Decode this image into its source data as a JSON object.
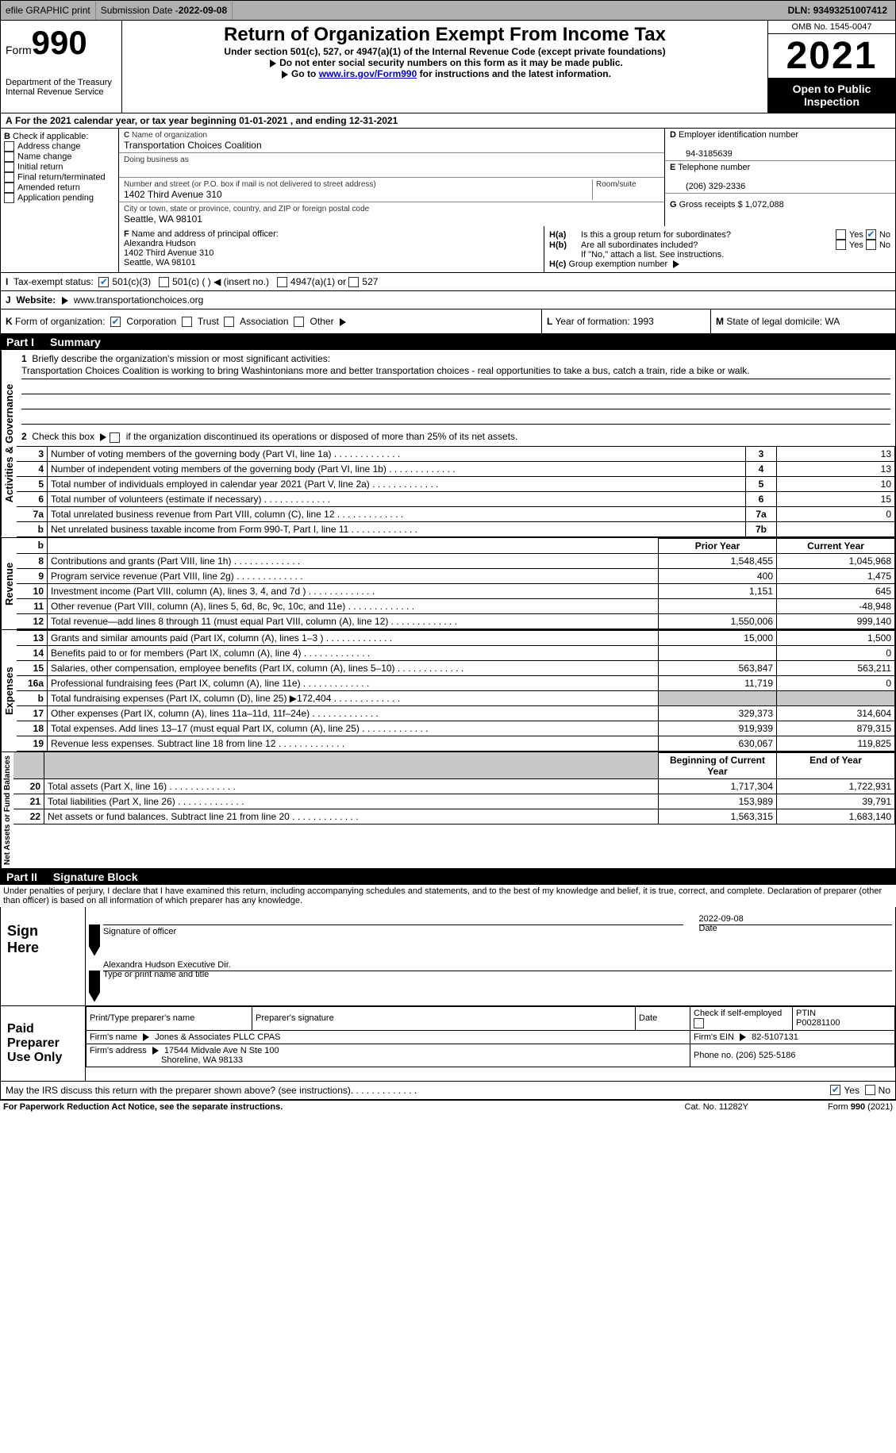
{
  "topbar": {
    "efile": "efile GRAPHIC print",
    "submission_label": "Submission Date - ",
    "submission_date": "2022-09-08",
    "dln_label": "DLN: ",
    "dln": "93493251007412"
  },
  "header": {
    "form_word": "Form",
    "form_num": "990",
    "dept": "Department of the Treasury",
    "irs": "Internal Revenue Service",
    "title": "Return of Organization Exempt From Income Tax",
    "subtitle": "Under section 501(c), 527, or 4947(a)(1) of the Internal Revenue Code (except private foundations)",
    "warn": "Do not enter social security numbers on this form as it may be made public.",
    "goto_pre": "Go to ",
    "goto_link": "www.irs.gov/Form990",
    "goto_post": " for instructions and the latest information.",
    "omb": "OMB No. 1545-0047",
    "year": "2021",
    "public1": "Open to Public",
    "public2": "Inspection"
  },
  "sectionA": {
    "text_pre": "For the 2021 calendar year, or tax year beginning ",
    "begin": "01-01-2021",
    "mid": " , and ending ",
    "end": "12-31-2021"
  },
  "B": {
    "header": "Check if applicable:",
    "items": [
      "Address change",
      "Name change",
      "Initial return",
      "Final return/terminated",
      "Amended return",
      "Application pending"
    ]
  },
  "C": {
    "name_label": "Name of organization",
    "name": "Transportation Choices Coalition",
    "dba_label": "Doing business as",
    "dba": "",
    "addr_label": "Number and street (or P.O. box if mail is not delivered to street address)",
    "room_label": "Room/suite",
    "addr": "1402 Third Avenue 310",
    "city_label": "City or town, state or province, country, and ZIP or foreign postal code",
    "city": "Seattle, WA  98101"
  },
  "D": {
    "label": "Employer identification number",
    "value": "94-3185639"
  },
  "E": {
    "label": "Telephone number",
    "value": "(206) 329-2336"
  },
  "G": {
    "label": "Gross receipts $ ",
    "value": "1,072,088"
  },
  "F": {
    "label": "Name and address of principal officer:",
    "name": "Alexandra Hudson",
    "addr1": "1402 Third Avenue 310",
    "addr2": "Seattle, WA  98101"
  },
  "H": {
    "a": "Is this a group return for subordinates?",
    "b": "Are all subordinates included?",
    "b_note": "If \"No,\" attach a list. See instructions.",
    "c": "Group exemption number",
    "yes": "Yes",
    "no": "No"
  },
  "I": {
    "label": "Tax-exempt status:",
    "opts": [
      "501(c)(3)",
      "501(c) (  )  ◀ (insert no.)",
      "4947(a)(1) or",
      "527"
    ]
  },
  "J": {
    "label": "Website:",
    "value": "www.transportationchoices.org"
  },
  "K": {
    "label": "Form of organization:",
    "opts": [
      "Corporation",
      "Trust",
      "Association",
      "Other"
    ]
  },
  "L": {
    "label": "Year of formation: ",
    "value": "1993"
  },
  "M": {
    "label": "State of legal domicile: ",
    "value": "WA"
  },
  "part1": {
    "title": "Part I",
    "name": "Summary",
    "q1": "Briefly describe the organization's mission or most significant activities:",
    "mission": "Transportation Choices Coalition is working to bring Washintonians more and better transportation choices - real opportunities to take a bus, catch a train, ride a bike or walk.",
    "q2_pre": "Check this box ",
    "q2_post": " if the organization discontinued its operations or disposed of more than 25% of its net assets.",
    "side_labels": {
      "ag": "Activities & Governance",
      "rev": "Revenue",
      "exp": "Expenses",
      "net": "Net Assets or Fund Balances"
    },
    "rows_gov": [
      {
        "n": "3",
        "t": "Number of voting members of the governing body (Part VI, line 1a)",
        "box": "3",
        "v": "13"
      },
      {
        "n": "4",
        "t": "Number of independent voting members of the governing body (Part VI, line 1b)",
        "box": "4",
        "v": "13"
      },
      {
        "n": "5",
        "t": "Total number of individuals employed in calendar year 2021 (Part V, line 2a)",
        "box": "5",
        "v": "10"
      },
      {
        "n": "6",
        "t": "Total number of volunteers (estimate if necessary)",
        "box": "6",
        "v": "15"
      },
      {
        "n": "7a",
        "t": "Total unrelated business revenue from Part VIII, column (C), line 12",
        "box": "7a",
        "v": "0"
      },
      {
        "n": "b",
        "t": "Net unrelated business taxable income from Form 990-T, Part I, line 11",
        "box": "7b",
        "v": ""
      }
    ],
    "col_headers": {
      "prior": "Prior Year",
      "current": "Current Year"
    },
    "rows_rev": [
      {
        "n": "8",
        "t": "Contributions and grants (Part VIII, line 1h)",
        "p": "1,548,455",
        "c": "1,045,968"
      },
      {
        "n": "9",
        "t": "Program service revenue (Part VIII, line 2g)",
        "p": "400",
        "c": "1,475"
      },
      {
        "n": "10",
        "t": "Investment income (Part VIII, column (A), lines 3, 4, and 7d )",
        "p": "1,151",
        "c": "645"
      },
      {
        "n": "11",
        "t": "Other revenue (Part VIII, column (A), lines 5, 6d, 8c, 9c, 10c, and 11e)",
        "p": "",
        "c": "-48,948"
      },
      {
        "n": "12",
        "t": "Total revenue—add lines 8 through 11 (must equal Part VIII, column (A), line 12)",
        "p": "1,550,006",
        "c": "999,140"
      }
    ],
    "rows_exp": [
      {
        "n": "13",
        "t": "Grants and similar amounts paid (Part IX, column (A), lines 1–3 )",
        "p": "15,000",
        "c": "1,500"
      },
      {
        "n": "14",
        "t": "Benefits paid to or for members (Part IX, column (A), line 4)",
        "p": "",
        "c": "0"
      },
      {
        "n": "15",
        "t": "Salaries, other compensation, employee benefits (Part IX, column (A), lines 5–10)",
        "p": "563,847",
        "c": "563,211"
      },
      {
        "n": "16a",
        "t": "Professional fundraising fees (Part IX, column (A), line 11e)",
        "p": "11,719",
        "c": "0"
      },
      {
        "n": "b",
        "t": "Total fundraising expenses (Part IX, column (D), line 25) ▶172,404",
        "p": "SHADE",
        "c": "SHADE"
      },
      {
        "n": "17",
        "t": "Other expenses (Part IX, column (A), lines 11a–11d, 11f–24e)",
        "p": "329,373",
        "c": "314,604"
      },
      {
        "n": "18",
        "t": "Total expenses. Add lines 13–17 (must equal Part IX, column (A), line 25)",
        "p": "919,939",
        "c": "879,315"
      },
      {
        "n": "19",
        "t": "Revenue less expenses. Subtract line 18 from line 12",
        "p": "630,067",
        "c": "119,825"
      }
    ],
    "col_headers2": {
      "begin": "Beginning of Current Year",
      "end": "End of Year"
    },
    "rows_net": [
      {
        "n": "20",
        "t": "Total assets (Part X, line 16)",
        "p": "1,717,304",
        "c": "1,722,931"
      },
      {
        "n": "21",
        "t": "Total liabilities (Part X, line 26)",
        "p": "153,989",
        "c": "39,791"
      },
      {
        "n": "22",
        "t": "Net assets or fund balances. Subtract line 21 from line 20",
        "p": "1,563,315",
        "c": "1,683,140"
      }
    ]
  },
  "part2": {
    "title": "Part II",
    "name": "Signature Block",
    "decl": "Under penalties of perjury, I declare that I have examined this return, including accompanying schedules and statements, and to the best of my knowledge and belief, it is true, correct, and complete. Declaration of preparer (other than officer) is based on all information of which preparer has any knowledge.",
    "sign_here": "Sign Here",
    "sig_officer": "Signature of officer",
    "sig_date_label": "Date",
    "sig_date": "2022-09-08",
    "officer_name": "Alexandra Hudson  Executive Dir.",
    "type_name": "Type or print name and title",
    "paid": "Paid Preparer Use Only",
    "prep_name_label": "Print/Type preparer's name",
    "prep_sig_label": "Preparer's signature",
    "date_label": "Date",
    "check_if": "Check         if self-employed",
    "ptin_label": "PTIN",
    "ptin": "P00281100",
    "firm_name_label": "Firm's name   ",
    "firm_name": "Jones & Associates PLLC CPAS",
    "firm_ein_label": "Firm's EIN ",
    "firm_ein": "82-5107131",
    "firm_addr_label": "Firm's address ",
    "firm_addr1": "17544 Midvale Ave N Ste 100",
    "firm_addr2": "Shoreline, WA  98133",
    "phone_label": "Phone no. ",
    "phone": "(206) 525-5186",
    "discuss": "May the IRS discuss this return with the preparer shown above? (see instructions)",
    "yes": "Yes",
    "no": "No"
  },
  "footer": {
    "pra": "For Paperwork Reduction Act Notice, see the separate instructions.",
    "cat": "Cat. No. 11282Y",
    "form": "Form 990 (2021)"
  }
}
